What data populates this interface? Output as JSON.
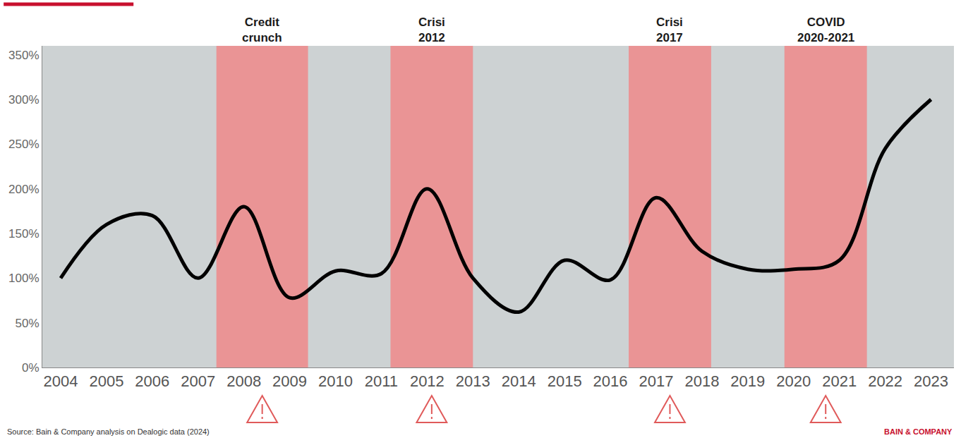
{
  "chart_data": {
    "type": "line",
    "x": [
      2004,
      2005,
      2006,
      2007,
      2008,
      2009,
      2010,
      2011,
      2012,
      2013,
      2014,
      2015,
      2016,
      2017,
      2018,
      2019,
      2020,
      2021,
      2022,
      2023
    ],
    "values": [
      100,
      160,
      170,
      100,
      180,
      78,
      108,
      105,
      200,
      100,
      62,
      120,
      98,
      190,
      130,
      110,
      110,
      120,
      245,
      300
    ],
    "color": "#000000",
    "line_style": "solid",
    "marker": "none",
    "xlim": [
      2003.6,
      2023.5
    ],
    "xticks": [
      2004,
      2005,
      2006,
      2007,
      2008,
      2009,
      2010,
      2011,
      2012,
      2013,
      2014,
      2015,
      2016,
      2017,
      2018,
      2019,
      2020,
      2021,
      2022,
      2023
    ],
    "ylim": [
      0,
      360
    ],
    "yticks": [
      {
        "value": 0,
        "label": "0%"
      },
      {
        "value": 50,
        "label": "50%"
      },
      {
        "value": 100,
        "label": "100%"
      },
      {
        "value": 150,
        "label": "150%"
      },
      {
        "value": 200,
        "label": "200%"
      },
      {
        "value": 250,
        "label": "250%"
      },
      {
        "value": 300,
        "label": "300%"
      },
      {
        "value": 350,
        "label": "350%"
      }
    ],
    "grid": false,
    "periods": [
      {
        "label": "Credit crunch",
        "start": 2007.4,
        "end": 2009.4,
        "color": "#ef8a8a"
      },
      {
        "label": "Crisi 2012",
        "start": 2011.2,
        "end": 2013.0,
        "color": "#ef8a8a"
      },
      {
        "label": "Crisi 2017",
        "start": 2016.4,
        "end": 2018.2,
        "color": "#ef8a8a"
      },
      {
        "label": "COVID 2020-2021",
        "start": 2019.8,
        "end": 2021.6,
        "color": "#ef8a8a"
      }
    ],
    "source": "Source: Bain & Company analysis on Dealogic data (2024)",
    "logo": "BAIN & COMPANY"
  }
}
